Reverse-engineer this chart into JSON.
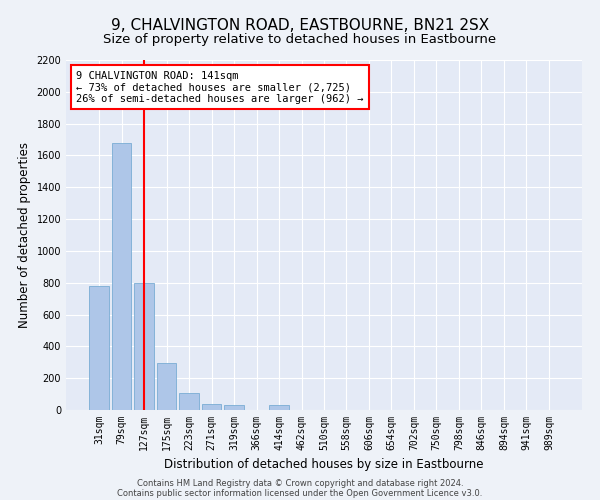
{
  "title": "9, CHALVINGTON ROAD, EASTBOURNE, BN21 2SX",
  "subtitle": "Size of property relative to detached houses in Eastbourne",
  "xlabel": "Distribution of detached houses by size in Eastbourne",
  "ylabel": "Number of detached properties",
  "categories": [
    "31sqm",
    "79sqm",
    "127sqm",
    "175sqm",
    "223sqm",
    "271sqm",
    "319sqm",
    "366sqm",
    "414sqm",
    "462sqm",
    "510sqm",
    "558sqm",
    "606sqm",
    "654sqm",
    "702sqm",
    "750sqm",
    "798sqm",
    "846sqm",
    "894sqm",
    "941sqm",
    "989sqm"
  ],
  "values": [
    780,
    1680,
    800,
    295,
    110,
    35,
    30,
    0,
    30,
    0,
    0,
    0,
    0,
    0,
    0,
    0,
    0,
    0,
    0,
    0,
    0
  ],
  "bar_color": "#aec6e8",
  "bar_edge_color": "#7aadd4",
  "vline_x": 2,
  "vline_color": "red",
  "annotation_line1": "9 CHALVINGTON ROAD: 141sqm",
  "annotation_line2": "← 73% of detached houses are smaller (2,725)",
  "annotation_line3": "26% of semi-detached houses are larger (962) →",
  "ylim": [
    0,
    2200
  ],
  "yticks": [
    0,
    200,
    400,
    600,
    800,
    1000,
    1200,
    1400,
    1600,
    1800,
    2000,
    2200
  ],
  "footer1": "Contains HM Land Registry data © Crown copyright and database right 2024.",
  "footer2": "Contains public sector information licensed under the Open Government Licence v3.0.",
  "bg_color": "#eef2f8",
  "plot_bg_color": "#e4eaf6",
  "title_fontsize": 11,
  "subtitle_fontsize": 9.5,
  "tick_fontsize": 7,
  "ylabel_fontsize": 8.5,
  "xlabel_fontsize": 8.5,
  "annotation_fontsize": 7.5,
  "footer_fontsize": 6
}
